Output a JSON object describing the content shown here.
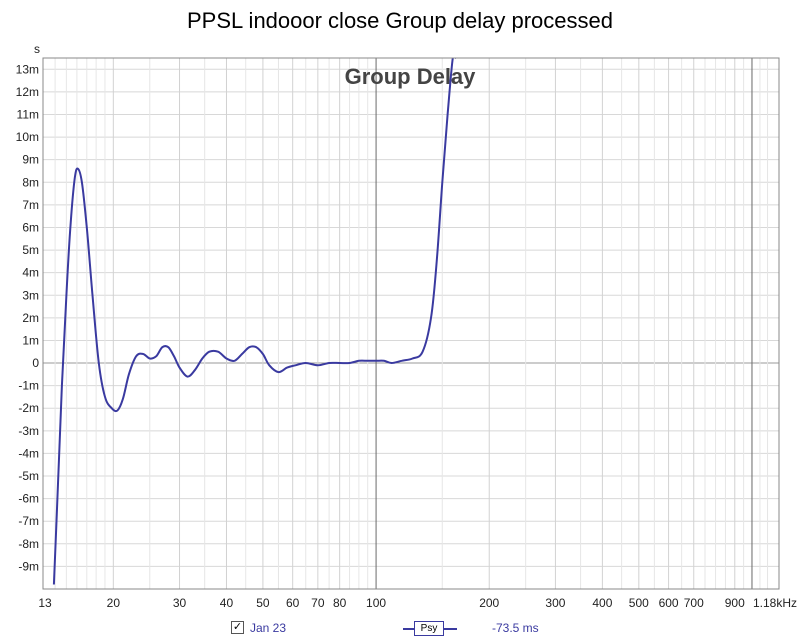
{
  "title": "PPSL indooor close Group delay processed",
  "chart_data": {
    "type": "line",
    "title": "PPSL indooor close Group delay processed",
    "inner_title": "Group Delay",
    "y_unit": "s",
    "x_scale": "log",
    "xlim": [
      13,
      1180
    ],
    "ylim": [
      -0.01,
      0.0135
    ],
    "grid": true,
    "x_ticks": [
      {
        "v": 13,
        "label": "13"
      },
      {
        "v": 20,
        "label": "20"
      },
      {
        "v": 30,
        "label": "30"
      },
      {
        "v": 40,
        "label": "40"
      },
      {
        "v": 50,
        "label": "50"
      },
      {
        "v": 60,
        "label": "60"
      },
      {
        "v": 70,
        "label": "70"
      },
      {
        "v": 80,
        "label": "80"
      },
      {
        "v": 100,
        "label": "100"
      },
      {
        "v": 200,
        "label": "200"
      },
      {
        "v": 300,
        "label": "300"
      },
      {
        "v": 400,
        "label": "400"
      },
      {
        "v": 500,
        "label": "500"
      },
      {
        "v": 600,
        "label": "600"
      },
      {
        "v": 700,
        "label": "700"
      },
      {
        "v": 900,
        "label": "900"
      },
      {
        "v": 1180,
        "label": "1.18kHz"
      }
    ],
    "y_ticks": [
      {
        "v": 0.013,
        "label": "13m"
      },
      {
        "v": 0.012,
        "label": "12m"
      },
      {
        "v": 0.011,
        "label": "11m"
      },
      {
        "v": 0.01,
        "label": "10m"
      },
      {
        "v": 0.009,
        "label": "9m"
      },
      {
        "v": 0.008,
        "label": "8m"
      },
      {
        "v": 0.007,
        "label": "7m"
      },
      {
        "v": 0.006,
        "label": "6m"
      },
      {
        "v": 0.005,
        "label": "5m"
      },
      {
        "v": 0.004,
        "label": "4m"
      },
      {
        "v": 0.003,
        "label": "3m"
      },
      {
        "v": 0.002,
        "label": "2m"
      },
      {
        "v": 0.001,
        "label": "1m"
      },
      {
        "v": 0.0,
        "label": "0"
      },
      {
        "v": -0.001,
        "label": "-1m"
      },
      {
        "v": -0.002,
        "label": "-2m"
      },
      {
        "v": -0.003,
        "label": "-3m"
      },
      {
        "v": -0.004,
        "label": "-4m"
      },
      {
        "v": -0.005,
        "label": "-5m"
      },
      {
        "v": -0.006,
        "label": "-6m"
      },
      {
        "v": -0.007,
        "label": "-7m"
      },
      {
        "v": -0.008,
        "label": "-8m"
      },
      {
        "v": -0.009,
        "label": "-9m"
      }
    ],
    "series": [
      {
        "name": "Jan 23",
        "color": "#3a3aa0",
        "x": [
          13.9,
          14.2,
          14.6,
          15.0,
          15.4,
          15.8,
          16.1,
          16.5,
          17.0,
          17.6,
          18.3,
          19.0,
          19.8,
          20.5,
          21.2,
          22.0,
          23.0,
          24.0,
          25.0,
          26.0,
          27.0,
          28.0,
          29.0,
          30.0,
          31.5,
          33.0,
          34.5,
          36.0,
          38.0,
          40.0,
          42.0,
          44.0,
          46.0,
          48.0,
          50.0,
          52.0,
          55.0,
          58.0,
          61.0,
          65.0,
          70.0,
          75.0,
          80.0,
          85.0,
          90.0,
          95.0,
          100.0,
          105.0,
          110.0,
          117.0,
          125.0,
          133.0,
          140.0,
          145.0,
          150.0,
          155.0,
          160.0,
          163.0
        ],
        "y": [
          -0.0098,
          -0.006,
          -0.001,
          0.003,
          0.0062,
          0.0082,
          0.0086,
          0.008,
          0.006,
          0.003,
          0.0,
          -0.0015,
          -0.002,
          -0.0021,
          -0.0016,
          -0.0005,
          0.0003,
          0.0004,
          0.0002,
          0.0003,
          0.0007,
          0.0007,
          0.0003,
          -0.0002,
          -0.0006,
          -0.0003,
          0.0002,
          0.0005,
          0.0005,
          0.0002,
          0.0001,
          0.0004,
          0.0007,
          0.0007,
          0.0004,
          -0.0001,
          -0.0004,
          -0.0002,
          -0.0001,
          0.0,
          -0.0001,
          0.0,
          0.0,
          0.0,
          0.0001,
          0.0001,
          0.0001,
          0.0001,
          0.0,
          0.0001,
          0.0002,
          0.0005,
          0.002,
          0.0045,
          0.008,
          0.011,
          0.0135,
          0.0135
        ]
      }
    ]
  },
  "legend": {
    "checkbox_mark": "✓",
    "series_name": "Jan 23",
    "box_label": "Psy",
    "value_text": "-73.5 ms"
  }
}
